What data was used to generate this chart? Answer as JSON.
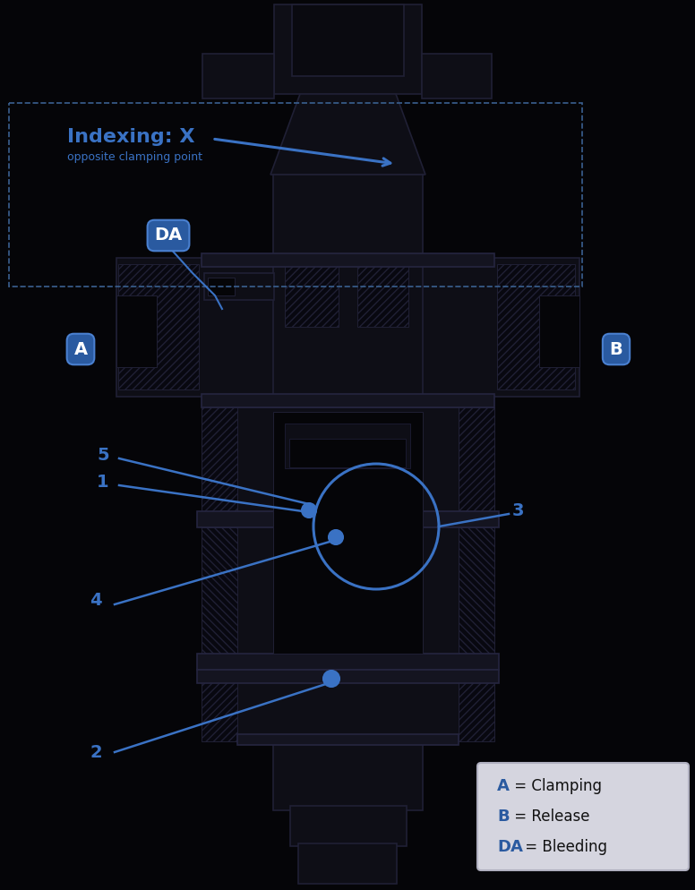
{
  "bg_color": "#050508",
  "line_color": "#1a1a2a",
  "blue": "#3a72c4",
  "blue_dark": "#2a5aa0",
  "white": "#ffffff",
  "dark_fill": "#0a0a10",
  "mid_fill": "#0e0e16",
  "hatch_fill": "#080810",
  "legend_bg": "#d5d5df",
  "legend_border": "#b0b0c0",
  "title": "Indexing: X",
  "subtitle": "opposite clamping point",
  "legend_items": [
    {
      "label": "A",
      "desc": " = Clamping"
    },
    {
      "label": "B",
      "desc": " = Release"
    },
    {
      "label": "DA",
      "desc": " = Bleeding"
    }
  ]
}
